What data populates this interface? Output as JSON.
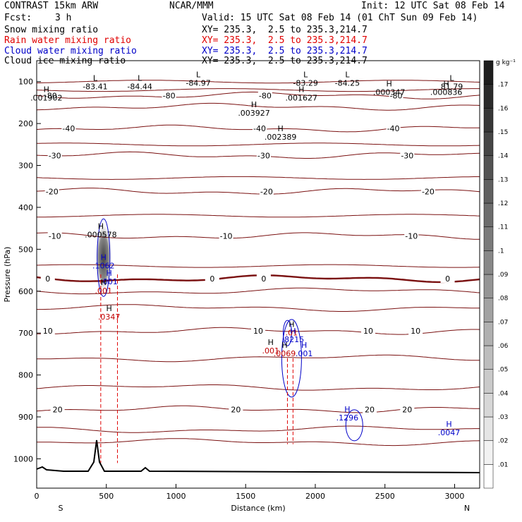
{
  "header": {
    "model": "CONTRAST 15km ARW",
    "center": "NCAR/MMM",
    "init": "Init: 12 UTC Sat 08 Feb 14",
    "fcst_label": "Fcst:",
    "fcst_value": "3 h",
    "valid": "Valid: 15 UTC Sat 08 Feb 14 (01 ChT Sun 09 Feb 14)"
  },
  "fields": [
    {
      "name": "Snow mixing ratio",
      "xy": "XY= 235.3,  2.5 to 235.3,214.7",
      "color": "#000000"
    },
    {
      "name": "Rain water mixing ratio",
      "xy": "XY= 235.3,  2.5 to 235.3,214.7",
      "color": "#e00000"
    },
    {
      "name": "Cloud water mixing ratio",
      "xy": "XY= 235.3,  2.5 to 235.3,214.7",
      "color": "#0000c8"
    },
    {
      "name": "Cloud ice mixing ratio",
      "xy": "XY= 235.3,  2.5 to 235.3,214.7",
      "color": "#000000"
    }
  ],
  "chart_data": {
    "type": "cross-section contour",
    "xlabel": "Distance (km)",
    "ylabel": "Pressure (hPa)",
    "xlim": [
      0,
      3180
    ],
    "ylim": [
      1070,
      50
    ],
    "x_ticks": [
      0,
      500,
      1000,
      1500,
      2000,
      2500,
      3000
    ],
    "y_ticks": [
      100,
      200,
      300,
      400,
      500,
      600,
      700,
      800,
      900,
      1000
    ],
    "left_end": "S",
    "right_end": "N",
    "temperature_contours": [
      {
        "value": -80,
        "label": "-80",
        "p": 133,
        "labels_x": [
          100,
          950,
          1640,
          2580
        ]
      },
      {
        "value": -50,
        "label": "",
        "p": 160,
        "labels_x": []
      },
      {
        "value": -40,
        "label": "-40",
        "p": 212,
        "labels_x": [
          230,
          1600,
          2560
        ]
      },
      {
        "value": -30,
        "label": "-30",
        "p": 276,
        "labels_x": [
          130,
          1630,
          2660
        ]
      },
      {
        "value": -20,
        "label": "-20",
        "p": 362,
        "labels_x": [
          110,
          1650,
          2810
        ]
      },
      {
        "value": -10,
        "label": "-10",
        "p": 468,
        "labels_x": [
          130,
          1360,
          2690
        ]
      },
      {
        "value": 0,
        "label": "0",
        "p": 570,
        "labels_x": [
          80,
          1260,
          1630,
          2950
        ]
      },
      {
        "value": 10,
        "label": "10",
        "p": 695,
        "labels_x": [
          80,
          1590,
          2380,
          2720
        ]
      },
      {
        "value": 20,
        "label": "20",
        "p": 882,
        "labels_x": [
          150,
          1430,
          2390,
          2660
        ]
      }
    ],
    "extrema_labels": [
      {
        "type": "L",
        "value": "-83.41",
        "x": 420,
        "p": 115
      },
      {
        "type": "L",
        "value": "-84.44",
        "x": 740,
        "p": 115
      },
      {
        "type": "L",
        "value": "-84.97",
        "x": 1160,
        "p": 106
      },
      {
        "type": "L",
        "value": "-83.29",
        "x": 1930,
        "p": 106
      },
      {
        "type": "L",
        "value": "-84.25",
        "x": 2230,
        "p": 106
      },
      {
        "type": "L",
        "value": "81.79",
        "x": 2980,
        "p": 115
      },
      {
        "type": "H",
        "value": ".001902",
        "x": 70,
        "p": 142
      },
      {
        "type": "H",
        "value": ".001627",
        "x": 1900,
        "p": 142
      },
      {
        "type": "H",
        "value": ".000347",
        "x": 2530,
        "p": 128
      },
      {
        "type": "H",
        "value": ".000836",
        "x": 2940,
        "p": 128
      },
      {
        "type": "H",
        "value": ".003927",
        "x": 1560,
        "p": 178
      },
      {
        "type": "H",
        "value": ".002389",
        "x": 1750,
        "p": 235
      },
      {
        "type": "H",
        "value": ".000578",
        "x": 460,
        "p": 468
      },
      {
        "type": "H",
        "value": ".1062",
        "x": 480,
        "p": 542
      },
      {
        "type": "H",
        "value": ".001",
        "x": 520,
        "p": 580
      },
      {
        "type": "H",
        "value": ".001",
        "x": 480,
        "p": 602
      },
      {
        "type": "H",
        "value": ".0347",
        "x": 520,
        "p": 664
      },
      {
        "type": "H",
        "value": ".01",
        "x": 1830,
        "p": 702
      },
      {
        "type": "H",
        "value": ".8215",
        "x": 1840,
        "p": 718
      },
      {
        "type": "H",
        "value": ".001",
        "x": 1680,
        "p": 745
      },
      {
        "type": "H",
        "value": ".0069",
        "x": 1780,
        "p": 752
      },
      {
        "type": "H",
        "value": ".001",
        "x": 1920,
        "p": 752
      },
      {
        "type": "H",
        "value": ".1296",
        "x": 2230,
        "p": 905
      },
      {
        "type": "H",
        "value": ".0047",
        "x": 2960,
        "p": 940
      }
    ],
    "colorbar": {
      "unit": "g kg⁻¹",
      "levels": [
        ".01",
        ".02",
        ".03",
        ".04",
        ".05",
        ".06",
        ".07",
        ".08",
        ".09",
        ".1",
        ".11",
        ".12",
        ".13",
        ".14",
        ".15",
        ".16",
        ".17"
      ]
    }
  }
}
